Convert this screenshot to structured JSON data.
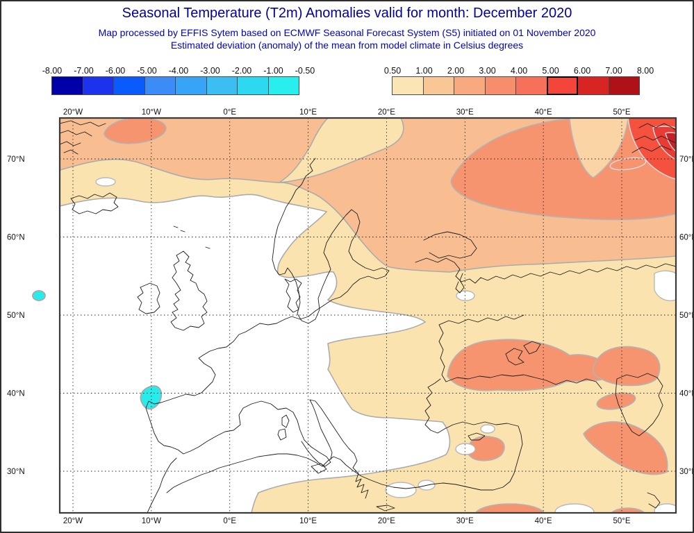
{
  "header": {
    "title": "Seasonal Temperature (T2m) Anomalies valid for month: December 2020",
    "subtitle1": "Map processed by EFFIS Sytem based on ECMWF Seasonal Forecast System (S5) initiated on 01 November 2020",
    "subtitle2": "Estimated deviation (anomaly) of the mean from model climate in Celsius degrees",
    "title_color": "#0000A0",
    "subtitle_color": "#0000CD"
  },
  "legend_negative": {
    "tick_labels": [
      "-8.00",
      "-7.00",
      "-6.00",
      "-5.00",
      "-4.00",
      "-3.00",
      "-2.00",
      "-1.00",
      "-0.50"
    ],
    "cell_colors": [
      "#0000A8",
      "#1C32EC",
      "#0A5BFB",
      "#3C8CF8",
      "#38A4F8",
      "#3CBEF2",
      "#2ED8F0",
      "#28EEEE"
    ]
  },
  "legend_positive": {
    "tick_labels": [
      "0.50",
      "1.00",
      "2.00",
      "3.00",
      "4.00",
      "5.00",
      "6.00",
      "7.00",
      "8.00"
    ],
    "cell_colors": [
      "#FBE5B5",
      "#F9C795",
      "#F8A97F",
      "#F78E6B",
      "#F7705A",
      "#F4453B",
      "#D62522",
      "#AE1117"
    ],
    "highlighted_cell_index": 5
  },
  "map": {
    "lon_tick_labels": [
      "20°W",
      "10°W",
      "0°E",
      "10°E",
      "20°E",
      "30°E",
      "40°E",
      "50°E"
    ],
    "lat_tick_labels": [
      "70°N",
      "60°N",
      "50°N",
      "40°N",
      "30°N"
    ],
    "band_colors": {
      "cyan": "#26ECEC",
      "tan": "#FAE3AF",
      "light_orange": "#F8BE92",
      "salmon": "#F6946F",
      "red": "#F4513F",
      "dark_red": "#E93A33",
      "deep_red": "#C22227",
      "pale_wedge": "#FAD4A4"
    }
  }
}
